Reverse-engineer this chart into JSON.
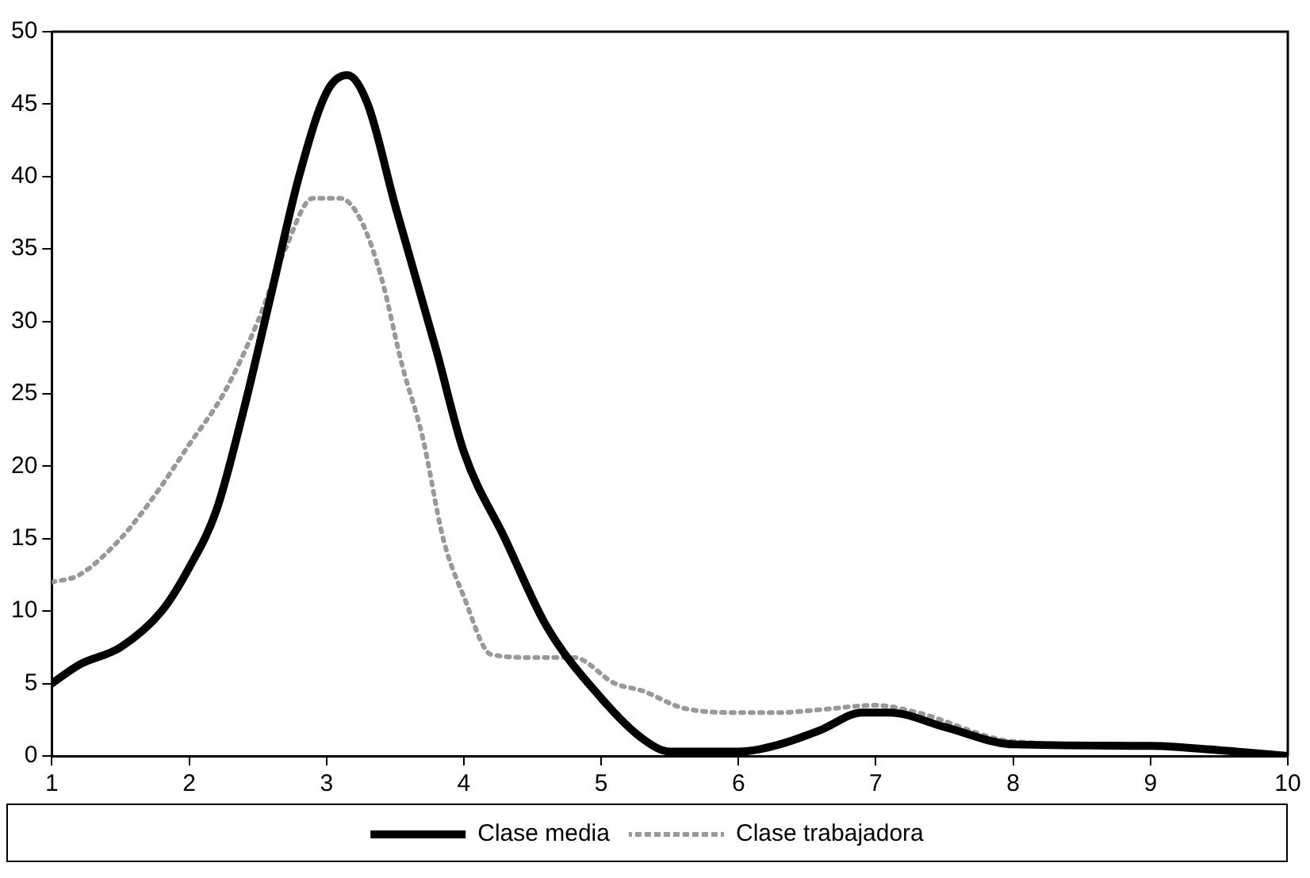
{
  "chart_data": {
    "type": "line",
    "xlim": [
      1,
      10
    ],
    "xticks": [
      1,
      2,
      3,
      4,
      5,
      6,
      7,
      8,
      9,
      10
    ],
    "ylim": [
      0,
      50
    ],
    "yticks": [
      0,
      5,
      10,
      15,
      20,
      25,
      30,
      35,
      40,
      45,
      50
    ],
    "grid": false,
    "legend": "bottom",
    "marker": "none",
    "series": [
      {
        "name": "Clase media",
        "color": "#000000",
        "line_style": "solid",
        "x": [
          1,
          1.2,
          1.5,
          1.8,
          2,
          2.2,
          2.4,
          2.6,
          2.8,
          3,
          3.15,
          3.3,
          3.5,
          3.8,
          4,
          4.3,
          4.6,
          5,
          5.3,
          5.5,
          6,
          6.3,
          6.6,
          6.9,
          7.1,
          7.5,
          8,
          9,
          9.5,
          10
        ],
        "values": [
          5,
          6.3,
          7.5,
          10,
          13,
          17,
          24,
          32,
          40,
          45.8,
          47,
          45,
          38,
          28,
          21,
          15,
          9,
          4,
          1.2,
          0.3,
          0.3,
          0.8,
          1.8,
          3,
          3,
          2,
          0.8,
          0.7,
          0.4,
          0
        ]
      },
      {
        "name": "Clase trabajadora",
        "color": "#999999",
        "line_style": "dotted",
        "x": [
          1,
          1.2,
          1.5,
          1.75,
          2,
          2.25,
          2.5,
          2.7,
          2.9,
          3.1,
          3.25,
          3.4,
          3.55,
          3.7,
          3.85,
          4,
          4.2,
          4.5,
          4.8,
          5.1,
          5.3,
          5.6,
          6,
          6.3,
          6.6,
          7,
          7.3,
          8,
          9,
          10
        ],
        "values": [
          12,
          12.5,
          15,
          18,
          21.5,
          25,
          30,
          35,
          38.5,
          38.5,
          37,
          33,
          27,
          22,
          15,
          11,
          7,
          6.8,
          6.8,
          5,
          4.5,
          3.3,
          3,
          3,
          3.2,
          3.5,
          3,
          1,
          0.7,
          0
        ]
      }
    ]
  }
}
